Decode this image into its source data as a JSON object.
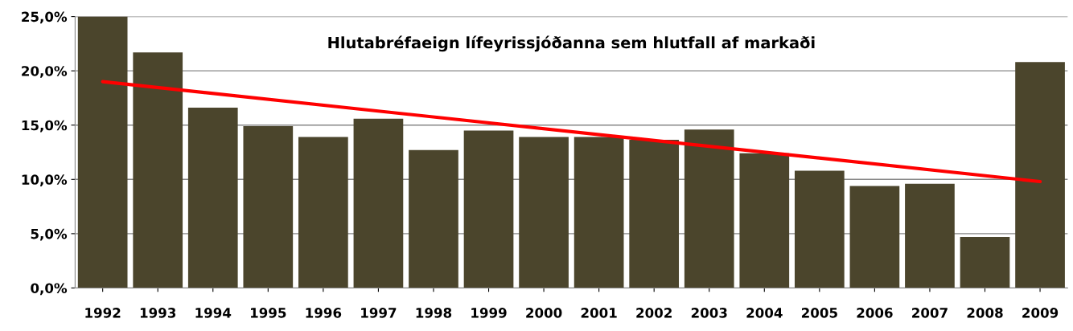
{
  "chart_data": {
    "type": "bar",
    "title": "Hlutabréfaeign lífeyrissjóðanna sem hlutfall af markaði",
    "categories": [
      "1992",
      "1993",
      "1994",
      "1995",
      "1996",
      "1997",
      "1998",
      "1999",
      "2000",
      "2001",
      "2002",
      "2003",
      "2004",
      "2005",
      "2006",
      "2007",
      "2008",
      "2009"
    ],
    "series": [
      {
        "color": "#4b452c",
        "values": [
          25.0,
          21.7,
          16.6,
          14.9,
          13.9,
          15.6,
          12.7,
          14.5,
          13.9,
          13.9,
          13.65,
          14.6,
          12.4,
          10.8,
          9.4,
          9.6,
          4.7,
          20.8
        ]
      },
      {
        "type": "line",
        "color": "#ff0000",
        "values": [
          19.0,
          null,
          null,
          null,
          null,
          null,
          null,
          null,
          null,
          null,
          null,
          null,
          null,
          null,
          null,
          null,
          null,
          9.8
        ]
      }
    ],
    "ylim": [
      0,
      25
    ],
    "yticks": [
      {
        "value": 0,
        "label": "0,0%"
      },
      {
        "value": 5,
        "label": "5,0%"
      },
      {
        "value": 10,
        "label": "10,0%"
      },
      {
        "value": 15,
        "label": "15,0%"
      },
      {
        "value": 20,
        "label": "20,0%"
      },
      {
        "value": 25,
        "label": "25,0%"
      }
    ],
    "grid": "y",
    "legend": false
  }
}
